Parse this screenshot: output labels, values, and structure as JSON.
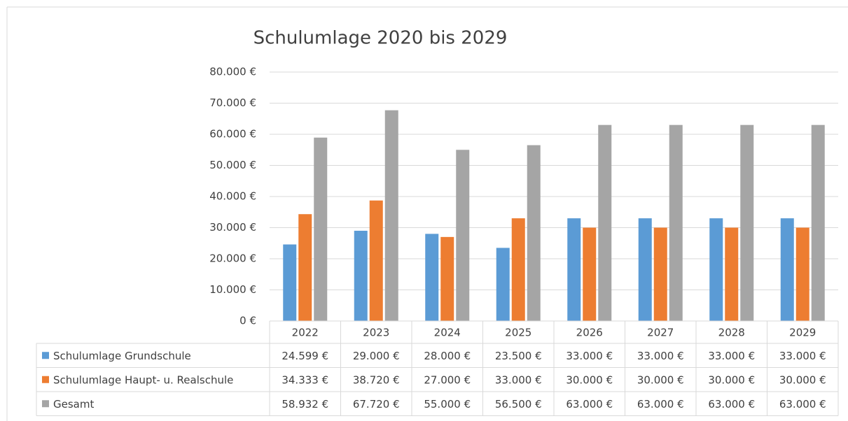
{
  "chart_data": {
    "type": "bar",
    "title": "Schulumlage 2020 bis 2029",
    "categories": [
      "2022",
      "2023",
      "2024",
      "2025",
      "2026",
      "2027",
      "2028",
      "2029"
    ],
    "series": [
      {
        "name": "Schulumlage Grundschule",
        "color": "#5b9bd5",
        "values": [
          24599,
          29000,
          28000,
          23500,
          33000,
          33000,
          33000,
          33000
        ],
        "value_labels": [
          "24.599 €",
          "29.000 €",
          "28.000 €",
          "23.500 €",
          "33.000 €",
          "33.000 €",
          "33.000 €",
          "33.000 €"
        ]
      },
      {
        "name": "Schulumlage Haupt- u. Realschule",
        "color": "#ed7d31",
        "values": [
          34333,
          38720,
          27000,
          33000,
          30000,
          30000,
          30000,
          30000
        ],
        "value_labels": [
          "34.333 €",
          "38.720 €",
          "27.000 €",
          "33.000 €",
          "30.000 €",
          "30.000 €",
          "30.000 €",
          "30.000 €"
        ]
      },
      {
        "name": "Gesamt",
        "color": "#a5a5a5",
        "values": [
          58932,
          67720,
          55000,
          56500,
          63000,
          63000,
          63000,
          63000
        ],
        "value_labels": [
          "58.932 €",
          "67.720 €",
          "55.000 €",
          "56.500 €",
          "63.000 €",
          "63.000 €",
          "63.000 €",
          "63.000 €"
        ]
      }
    ],
    "ylim": [
      0,
      80000
    ],
    "yticks": [
      {
        "value": 0,
        "label": "0 €"
      },
      {
        "value": 10000,
        "label": "10.000 €"
      },
      {
        "value": 20000,
        "label": "20.000 €"
      },
      {
        "value": 30000,
        "label": "30.000 €"
      },
      {
        "value": 40000,
        "label": "40.000 €"
      },
      {
        "value": 50000,
        "label": "50.000 €"
      },
      {
        "value": 60000,
        "label": "60.000 €"
      },
      {
        "value": 70000,
        "label": "70.000 €"
      },
      {
        "value": 80000,
        "label": "80.000 €"
      }
    ],
    "grid": true
  }
}
